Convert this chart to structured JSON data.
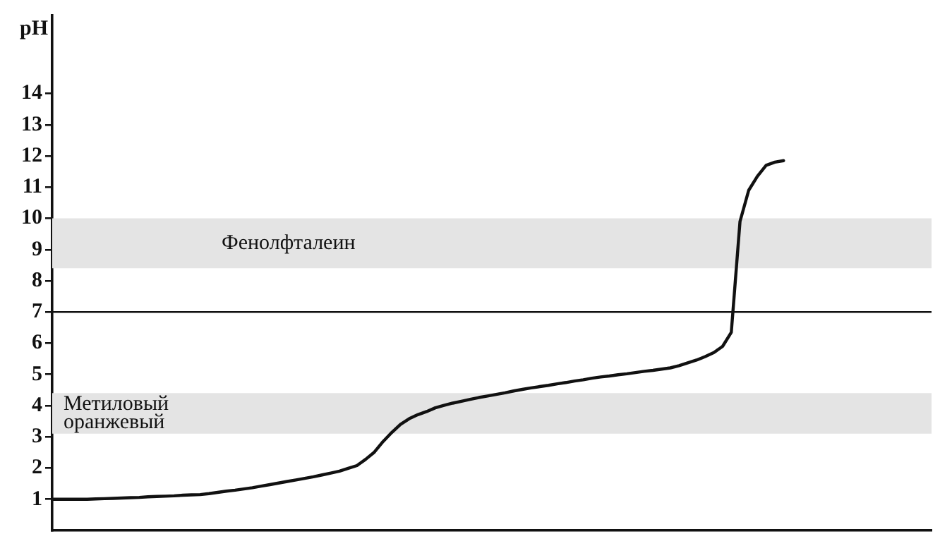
{
  "chart_data": {
    "type": "line",
    "ylabel": "pH",
    "categories": [
      null,
      null,
      null,
      null,
      null,
      null,
      null,
      null,
      null,
      null,
      null,
      null,
      null,
      null,
      null,
      null,
      null,
      null,
      null,
      null,
      null,
      null,
      null,
      null,
      null,
      null,
      null,
      null,
      null,
      null,
      null,
      null,
      null,
      null,
      null,
      null,
      null,
      null,
      null,
      null,
      null,
      null,
      null,
      null,
      null,
      null,
      null,
      null,
      null,
      null,
      null,
      null,
      null,
      null,
      null,
      null,
      null,
      null,
      null,
      null,
      null,
      null,
      null,
      null,
      null,
      null,
      null,
      null,
      null,
      null,
      null,
      null,
      null,
      null,
      null,
      null,
      null,
      null,
      null,
      null,
      null,
      null,
      null,
      null,
      null,
      null,
      null,
      null,
      null,
      null,
      null,
      null,
      null,
      null,
      null,
      null,
      null,
      null,
      null,
      null,
      null,
      null
    ],
    "ylim": [
      0,
      16.5
    ],
    "yticks": [
      1,
      2,
      3,
      4,
      5,
      6,
      7,
      8,
      9,
      10,
      11,
      12,
      13,
      14
    ],
    "tick_labels": "y",
    "grid": false,
    "legend": false,
    "marker": "none",
    "line_style": "solid",
    "series": [
      {
        "color": "#111111",
        "values": [
          1.0,
          1.0,
          1.0,
          1.0,
          1.0,
          1.01,
          1.02,
          1.03,
          1.04,
          1.05,
          1.06,
          1.08,
          1.09,
          1.1,
          1.11,
          1.13,
          1.14,
          1.15,
          1.18,
          1.22,
          1.26,
          1.29,
          1.33,
          1.37,
          1.42,
          1.47,
          1.52,
          1.57,
          1.62,
          1.67,
          1.72,
          1.78,
          1.84,
          1.9,
          1.99,
          2.08,
          2.28,
          2.51,
          2.85,
          3.14,
          3.4,
          3.58,
          3.71,
          3.81,
          3.93,
          4.01,
          4.08,
          4.14,
          4.2,
          4.26,
          4.31,
          4.36,
          4.41,
          4.47,
          4.52,
          4.57,
          4.61,
          4.65,
          4.7,
          4.74,
          4.79,
          4.83,
          4.88,
          4.92,
          4.95,
          4.99,
          5.02,
          5.06,
          5.1,
          5.13,
          5.17,
          5.21,
          5.28,
          5.37,
          5.46,
          5.57,
          5.7,
          5.9,
          6.35,
          9.9,
          10.9,
          11.35,
          11.7,
          11.8,
          11.85,
          null,
          null,
          null,
          null,
          null,
          null,
          null,
          null,
          null,
          null,
          null,
          null,
          null,
          null,
          null,
          null,
          null
        ]
      }
    ],
    "ref_lines": [
      {
        "axis": "y",
        "value": 7
      }
    ],
    "bands": [
      {
        "axis": "y",
        "from": 8.4,
        "to": 10,
        "label": "Фенолфталеин",
        "color": "#e4e4e4"
      },
      {
        "axis": "y",
        "from": 3.1,
        "to": 4.4,
        "label": "Метиловый оранжевый",
        "color": "#e4e4e4"
      }
    ]
  }
}
